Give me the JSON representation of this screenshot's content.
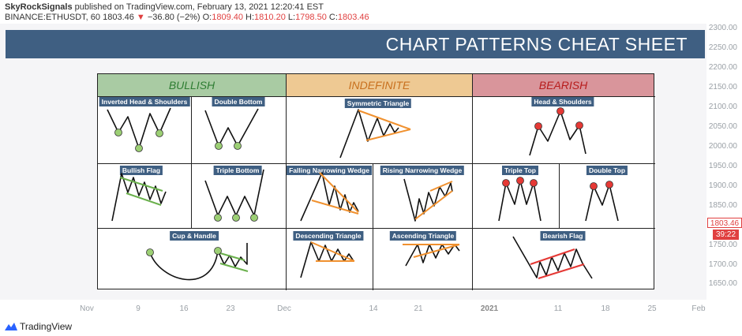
{
  "header": {
    "author": "SkyRockSignals",
    "published_text": "published on TradingView.com, February 13, 2021 12:20:41 EST",
    "symbol": "BINANCE:ETHUSDT, 60",
    "last": "1803.46",
    "change": "−36.80 (−2%)",
    "o_label": "O:",
    "o": "1809.40",
    "h_label": "H:",
    "h": "1810.20",
    "l_label": "L:",
    "l": "1798.50",
    "c_label": "C:",
    "c": "1803.46"
  },
  "banner_title": "CHART PATTERNS CHEAT SHEET",
  "columns": {
    "bullish": "BULLISH",
    "indefinite": "INDEFINITE",
    "bearish": "BEARISH"
  },
  "patterns": {
    "inverted_head_shoulders": "Inverted Head & Shoulders",
    "double_bottom": "Double Bottom",
    "symmetric_triangle": "Symmetric Triangle",
    "head_shoulders": "Head & Shoulders",
    "bullish_flag": "Bullish Flag",
    "triple_bottom": "Triple Bottom",
    "falling_wedge": "Falling Narrowing Wedge",
    "rising_wedge": "Rising Narrowing Wedge",
    "triple_top": "Triple Top",
    "double_top": "Double Top",
    "cup_handle": "Cup & Handle",
    "descending_triangle": "Descending Triangle",
    "ascending_triangle": "Ascending Triangle",
    "bearish_flag": "Bearish Flag"
  },
  "price_axis": {
    "ticks": [
      "2300.00",
      "2250.00",
      "2200.00",
      "2150.00",
      "2100.00",
      "2050.00",
      "2000.00",
      "1950.00",
      "1900.00",
      "1850.00",
      "1750.00",
      "1700.00",
      "1650.00"
    ],
    "last_price": "1803.46",
    "countdown": "39:22"
  },
  "time_axis": {
    "ticks": [
      "Nov",
      "9",
      "16",
      "23",
      "Dec",
      "14",
      "21",
      "2021",
      "11",
      "18",
      "25",
      "Feb"
    ]
  },
  "colors": {
    "banner": "#3f5f82",
    "bullish_header": "#a9cba3",
    "indefinite_header": "#eec993",
    "bearish_header": "#d9959b",
    "bullish_text": "#2e7d32",
    "indefinite_text": "#c8701e",
    "bearish_text": "#b71c1c",
    "green_marker": "#8bc34a",
    "orange_line": "#f0912f",
    "red_marker": "#e53935",
    "price_down": "#e04040"
  },
  "footer": {
    "brand": "TradingView"
  }
}
